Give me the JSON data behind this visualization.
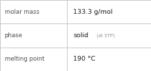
{
  "rows": [
    {
      "label": "molar mass",
      "value": "133.3 g/mol",
      "small_text": null
    },
    {
      "label": "phase",
      "value": "solid",
      "small_text": "(at STP)"
    },
    {
      "label": "melting point",
      "value": "190 °C",
      "small_text": null
    }
  ],
  "bg_color": "#ffffff",
  "border_color": "#c8c8c8",
  "label_color": "#505050",
  "value_color": "#1a1a1a",
  "small_text_color": "#909090",
  "label_fontsize": 6.2,
  "value_fontsize": 6.8,
  "small_fontsize": 4.8,
  "col_split": 0.445
}
